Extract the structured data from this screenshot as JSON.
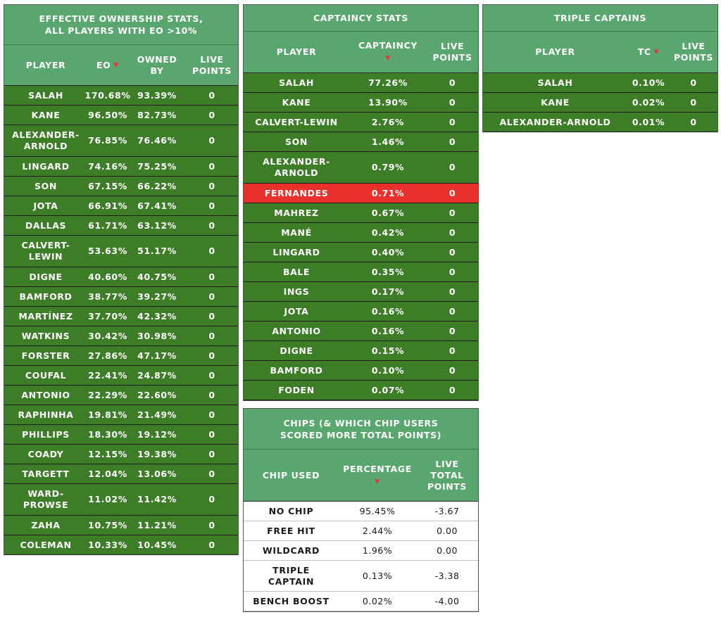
{
  "eo_panel": {
    "title": "EFFECTIVE OWNERSHIP STATS, ALL PLAYERS WITH EO >10%",
    "headers": {
      "player": "PLAYER",
      "eo": "EO",
      "owned_by": "OWNED BY",
      "live_points": "LIVE POINTS"
    },
    "sort_indicator": "▼",
    "rows": [
      {
        "player": "SALAH",
        "eo": "170.68%",
        "owned": "93.39%",
        "pts": "0"
      },
      {
        "player": "KANE",
        "eo": "96.50%",
        "owned": "82.73%",
        "pts": "0"
      },
      {
        "player": "ALEXANDER-ARNOLD",
        "eo": "76.85%",
        "owned": "76.46%",
        "pts": "0"
      },
      {
        "player": "LINGARD",
        "eo": "74.16%",
        "owned": "75.25%",
        "pts": "0"
      },
      {
        "player": "SON",
        "eo": "67.15%",
        "owned": "66.22%",
        "pts": "0"
      },
      {
        "player": "JOTA",
        "eo": "66.91%",
        "owned": "67.41%",
        "pts": "0"
      },
      {
        "player": "DALLAS",
        "eo": "61.71%",
        "owned": "63.12%",
        "pts": "0"
      },
      {
        "player": "CALVERT-LEWIN",
        "eo": "53.63%",
        "owned": "51.17%",
        "pts": "0"
      },
      {
        "player": "DIGNE",
        "eo": "40.60%",
        "owned": "40.75%",
        "pts": "0"
      },
      {
        "player": "BAMFORD",
        "eo": "38.77%",
        "owned": "39.27%",
        "pts": "0"
      },
      {
        "player": "MARTÍNEZ",
        "eo": "37.70%",
        "owned": "42.32%",
        "pts": "0"
      },
      {
        "player": "WATKINS",
        "eo": "30.42%",
        "owned": "30.98%",
        "pts": "0"
      },
      {
        "player": "FORSTER",
        "eo": "27.86%",
        "owned": "47.17%",
        "pts": "0"
      },
      {
        "player": "COUFAL",
        "eo": "22.41%",
        "owned": "24.87%",
        "pts": "0"
      },
      {
        "player": "ANTONIO",
        "eo": "22.29%",
        "owned": "22.60%",
        "pts": "0"
      },
      {
        "player": "RAPHINHA",
        "eo": "19.81%",
        "owned": "21.49%",
        "pts": "0"
      },
      {
        "player": "PHILLIPS",
        "eo": "18.30%",
        "owned": "19.12%",
        "pts": "0"
      },
      {
        "player": "COADY",
        "eo": "12.15%",
        "owned": "19.38%",
        "pts": "0"
      },
      {
        "player": "TARGETT",
        "eo": "12.04%",
        "owned": "13.06%",
        "pts": "0"
      },
      {
        "player": "WARD-PROWSE",
        "eo": "11.02%",
        "owned": "11.42%",
        "pts": "0"
      },
      {
        "player": "ZAHA",
        "eo": "10.75%",
        "owned": "11.21%",
        "pts": "0"
      },
      {
        "player": "COLEMAN",
        "eo": "10.33%",
        "owned": "10.45%",
        "pts": "0"
      }
    ]
  },
  "captaincy_panel": {
    "title": "CAPTAINCY STATS",
    "headers": {
      "player": "PLAYER",
      "captaincy": "CAPTAINCY",
      "live_points": "LIVE POINTS"
    },
    "sort_indicator": "▼",
    "rows": [
      {
        "player": "SALAH",
        "cap": "77.26%",
        "pts": "0"
      },
      {
        "player": "KANE",
        "cap": "13.90%",
        "pts": "0"
      },
      {
        "player": "CALVERT-LEWIN",
        "cap": "2.76%",
        "pts": "0"
      },
      {
        "player": "SON",
        "cap": "1.46%",
        "pts": "0"
      },
      {
        "player": "ALEXANDER-ARNOLD",
        "cap": "0.79%",
        "pts": "0"
      },
      {
        "player": "FERNANDES",
        "cap": "0.71%",
        "pts": "0",
        "highlight": true
      },
      {
        "player": "MAHREZ",
        "cap": "0.67%",
        "pts": "0"
      },
      {
        "player": "MANÉ",
        "cap": "0.42%",
        "pts": "0"
      },
      {
        "player": "LINGARD",
        "cap": "0.40%",
        "pts": "0"
      },
      {
        "player": "BALE",
        "cap": "0.35%",
        "pts": "0"
      },
      {
        "player": "INGS",
        "cap": "0.17%",
        "pts": "0"
      },
      {
        "player": "JOTA",
        "cap": "0.16%",
        "pts": "0"
      },
      {
        "player": "ANTONIO",
        "cap": "0.16%",
        "pts": "0"
      },
      {
        "player": "DIGNE",
        "cap": "0.15%",
        "pts": "0"
      },
      {
        "player": "BAMFORD",
        "cap": "0.10%",
        "pts": "0"
      },
      {
        "player": "FODEN",
        "cap": "0.07%",
        "pts": "0"
      }
    ]
  },
  "triple_panel": {
    "title": "TRIPLE CAPTAINS",
    "headers": {
      "player": "PLAYER",
      "tc": "TC",
      "live_points": "LIVE POINTS"
    },
    "sort_indicator": "▼",
    "rows": [
      {
        "player": "SALAH",
        "tc": "0.10%",
        "pts": "0"
      },
      {
        "player": "KANE",
        "tc": "0.02%",
        "pts": "0"
      },
      {
        "player": "ALEXANDER-ARNOLD",
        "tc": "0.01%",
        "pts": "0"
      }
    ]
  },
  "chips_panel": {
    "title": "CHIPS (& WHICH CHIP USERS SCORED MORE TOTAL POINTS)",
    "headers": {
      "chip": "CHIP USED",
      "percentage": "PERCENTAGE",
      "live_total": "LIVE TOTAL POINTS"
    },
    "sort_indicator": "▼",
    "rows": [
      {
        "chip": "NO CHIP",
        "pct": "95.45%",
        "pts": "-3.67"
      },
      {
        "chip": "FREE HIT",
        "pct": "2.44%",
        "pts": "0.00"
      },
      {
        "chip": "WILDCARD",
        "pct": "1.96%",
        "pts": "0.00"
      },
      {
        "chip": "TRIPLE CAPTAIN",
        "pct": "0.13%",
        "pts": "-3.38"
      },
      {
        "chip": "BENCH BOOST",
        "pct": "0.02%",
        "pts": "-4.00"
      }
    ]
  },
  "colors": {
    "header_green": "#5aa66f",
    "row_green": "#3d7d28",
    "highlight_red": "#e8312a",
    "sort_arrow": "#e8323c"
  }
}
